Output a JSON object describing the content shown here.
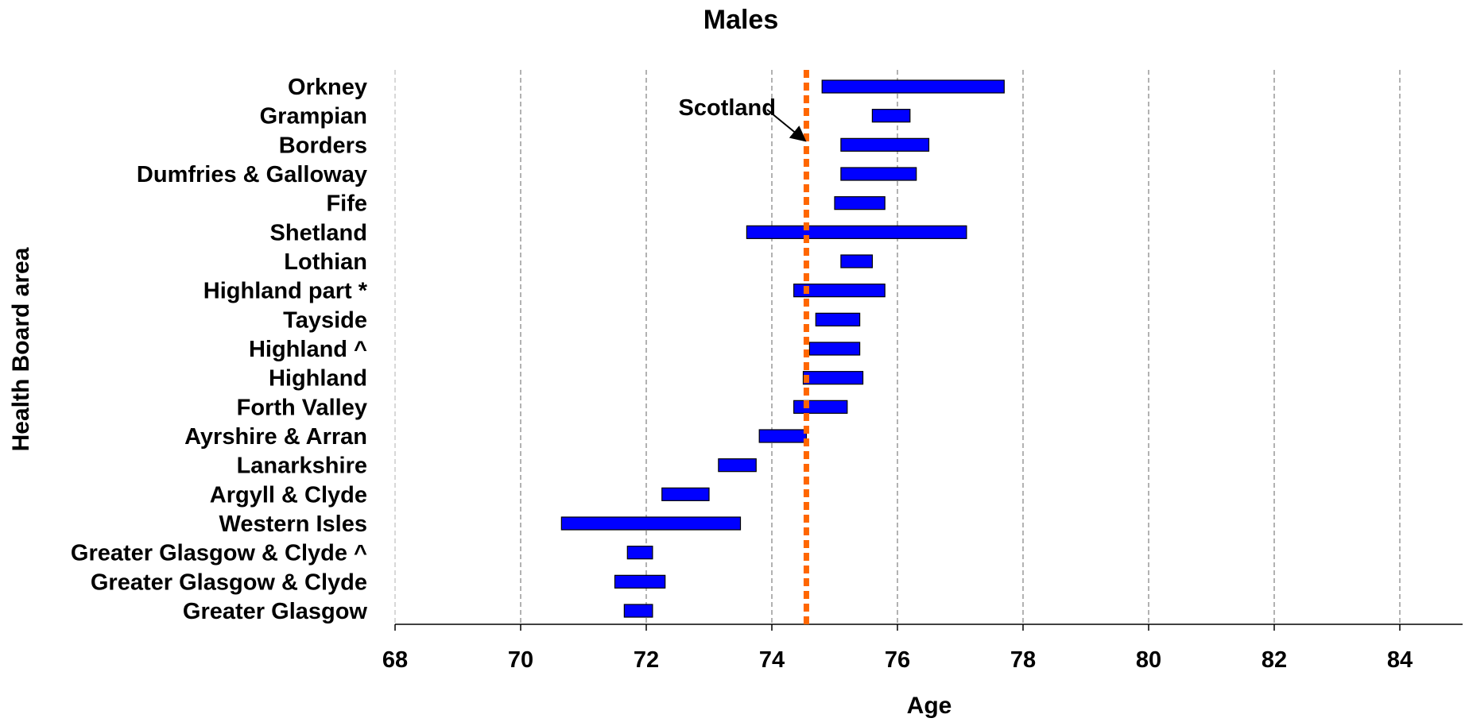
{
  "chart_data": {
    "type": "bar",
    "title": "Males",
    "xlabel": "Age",
    "ylabel": "Health Board area",
    "xlim": [
      68,
      85
    ],
    "xticks": [
      68,
      70,
      72,
      74,
      76,
      78,
      80,
      82,
      84
    ],
    "tick_labels": [
      "68",
      "70",
      "72",
      "74",
      "76",
      "78",
      "80",
      "82",
      "84"
    ],
    "grid": "vertical dashed",
    "categories": [
      "Orkney",
      "Grampian",
      "Borders",
      "Dumfries & Galloway",
      "Fife",
      "Shetland",
      "Lothian",
      "Highland part *",
      "Tayside",
      "Highland ^",
      "Highland",
      "Forth Valley",
      "Ayrshire & Arran",
      "Lanarkshire",
      "Argyll & Clyde",
      "Western Isles",
      "Greater Glasgow & Clyde ^",
      "Greater Glasgow & Clyde",
      "Greater Glasgow"
    ],
    "ranges": [
      [
        74.8,
        77.7
      ],
      [
        75.6,
        76.2
      ],
      [
        75.1,
        76.5
      ],
      [
        75.1,
        76.3
      ],
      [
        75.0,
        75.8
      ],
      [
        73.6,
        77.1
      ],
      [
        75.1,
        75.6
      ],
      [
        74.35,
        75.8
      ],
      [
        74.7,
        75.4
      ],
      [
        74.6,
        75.4
      ],
      [
        74.5,
        75.45
      ],
      [
        74.35,
        75.2
      ],
      [
        73.8,
        74.55
      ],
      [
        73.15,
        73.75
      ],
      [
        72.25,
        73.0
      ],
      [
        70.65,
        73.5
      ],
      [
        71.7,
        72.1
      ],
      [
        71.5,
        72.3
      ],
      [
        71.65,
        72.1
      ]
    ],
    "reference_line": {
      "label": "Scotland",
      "value": 74.55
    },
    "colors": {
      "bar_fill": "#0000ff",
      "bar_stroke": "#000000",
      "reference_line": "#ff6600",
      "grid": "#7f7f7f"
    }
  }
}
